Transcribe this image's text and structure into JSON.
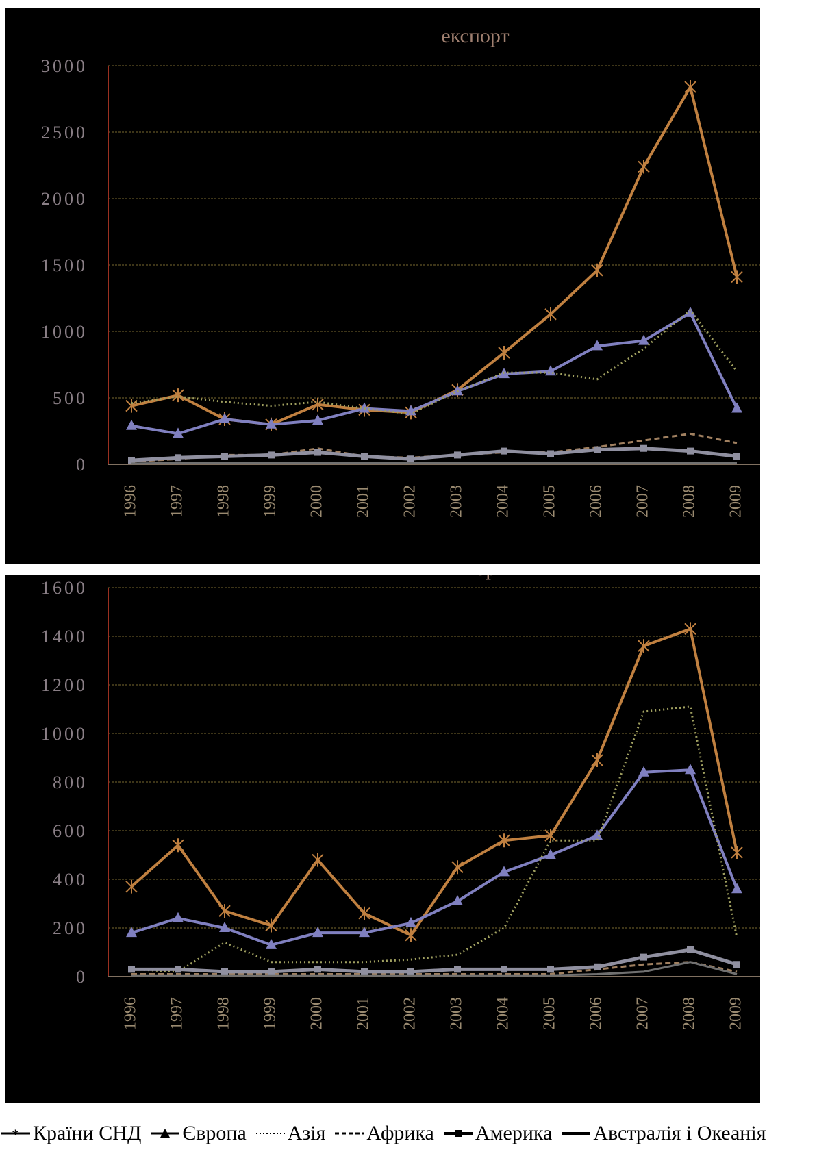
{
  "chart_data": [
    {
      "type": "line",
      "title": "експорт",
      "categories": [
        "1996",
        "1997",
        "1998",
        "1999",
        "2000",
        "2001",
        "2002",
        "2003",
        "2004",
        "2005",
        "2006",
        "2007",
        "2008",
        "2009"
      ],
      "ylim": [
        0,
        3000
      ],
      "yticks": [
        "0",
        "500",
        "1000",
        "1500",
        "2000",
        "2500",
        "3000"
      ],
      "grid": true,
      "series": [
        {
          "name": "Країни СНД",
          "values": [
            440,
            520,
            340,
            300,
            450,
            410,
            390,
            560,
            840,
            1130,
            1460,
            2240,
            2840,
            1410
          ]
        },
        {
          "name": "Європа",
          "values": [
            290,
            230,
            340,
            300,
            330,
            420,
            400,
            550,
            680,
            700,
            890,
            930,
            1140,
            420
          ]
        },
        {
          "name": "Азія",
          "values": [
            460,
            510,
            470,
            440,
            470,
            420,
            380,
            550,
            690,
            690,
            640,
            870,
            1160,
            700
          ]
        },
        {
          "name": "Африка",
          "values": [
            20,
            40,
            70,
            70,
            120,
            60,
            50,
            70,
            90,
            90,
            130,
            180,
            230,
            160
          ]
        },
        {
          "name": "Америка",
          "values": [
            30,
            50,
            60,
            70,
            90,
            60,
            40,
            70,
            100,
            80,
            110,
            120,
            100,
            60
          ]
        },
        {
          "name": "Австралія і Океанія",
          "values": [
            5,
            10,
            10,
            10,
            10,
            10,
            10,
            10,
            10,
            10,
            10,
            10,
            10,
            10
          ]
        }
      ]
    },
    {
      "type": "line",
      "title": "імпорт",
      "categories": [
        "1996",
        "1997",
        "1998",
        "1999",
        "2000",
        "2001",
        "2002",
        "2003",
        "2004",
        "2005",
        "2006",
        "2007",
        "2008",
        "2009"
      ],
      "ylim": [
        0,
        1600
      ],
      "yticks": [
        "0",
        "200",
        "400",
        "600",
        "800",
        "1000",
        "1200",
        "1400",
        "1600"
      ],
      "grid": true,
      "series": [
        {
          "name": "Країни СНД",
          "values": [
            370,
            540,
            270,
            210,
            480,
            260,
            170,
            450,
            560,
            580,
            890,
            1360,
            1430,
            510
          ]
        },
        {
          "name": "Європа",
          "values": [
            180,
            240,
            200,
            130,
            180,
            180,
            220,
            310,
            430,
            500,
            580,
            840,
            850,
            360
          ]
        },
        {
          "name": "Азія",
          "values": [
            30,
            20,
            140,
            60,
            60,
            60,
            70,
            90,
            200,
            560,
            560,
            1090,
            1110,
            160
          ]
        },
        {
          "name": "Африка",
          "values": [
            10,
            10,
            10,
            10,
            10,
            10,
            10,
            10,
            10,
            10,
            30,
            50,
            60,
            20
          ]
        },
        {
          "name": "Америка",
          "values": [
            30,
            30,
            20,
            20,
            30,
            20,
            20,
            30,
            30,
            30,
            40,
            80,
            110,
            50
          ]
        },
        {
          "name": "Австралія і Океанія",
          "values": [
            5,
            5,
            5,
            5,
            5,
            5,
            5,
            5,
            5,
            5,
            10,
            20,
            60,
            10
          ]
        }
      ]
    }
  ],
  "legend": {
    "items": [
      {
        "label": "Країни СНД"
      },
      {
        "label": "Європа"
      },
      {
        "label": "Азія"
      },
      {
        "label": "Африка"
      },
      {
        "label": "Америка"
      },
      {
        "label": "Австралія і Океанія"
      }
    ]
  },
  "colors": {
    "background": "#000000",
    "text": "#888888",
    "grid": "#7a6a30",
    "axis": "#9a3020",
    "page": "#ffffff"
  }
}
